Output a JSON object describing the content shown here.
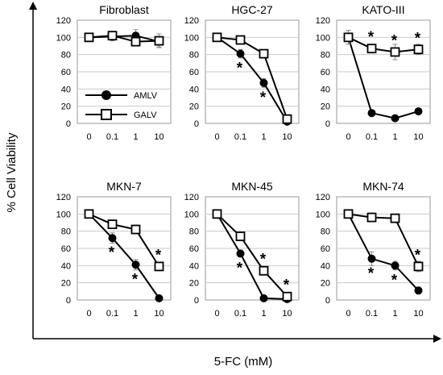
{
  "figure": {
    "ylabel": "% Cell Viability",
    "xlabel": "5-FC (mM)",
    "legend": {
      "placement": "inside-first-panel",
      "entries": [
        "AMLV",
        "GALV"
      ]
    }
  },
  "chart_data": [
    {
      "type": "line",
      "title": "Fibroblast",
      "categories": [
        "0",
        "0.1",
        "1",
        "10"
      ],
      "ylim": [
        0,
        120
      ],
      "yticks": [
        "0",
        "20",
        "40",
        "60",
        "80",
        "100",
        "120"
      ],
      "grid": true,
      "series": [
        {
          "name": "AMLV",
          "marker": "filled-circle",
          "values": [
            100,
            101,
            102,
            95
          ],
          "errors": [
            5,
            5,
            7,
            6
          ]
        },
        {
          "name": "GALV",
          "marker": "open-square",
          "values": [
            100,
            102,
            95,
            96
          ],
          "errors": [
            4,
            4,
            5,
            8
          ]
        }
      ],
      "significance": []
    },
    {
      "type": "line",
      "title": "HGC-27",
      "categories": [
        "0",
        "0.1",
        "1",
        "10"
      ],
      "ylim": [
        0,
        120
      ],
      "yticks": [
        "0",
        "20",
        "40",
        "60",
        "80",
        "100",
        "120"
      ],
      "grid": true,
      "series": [
        {
          "name": "AMLV",
          "marker": "filled-circle",
          "values": [
            100,
            81,
            47,
            2
          ],
          "errors": [
            4,
            5,
            5,
            3
          ]
        },
        {
          "name": "GALV",
          "marker": "open-square",
          "values": [
            100,
            97,
            81,
            5
          ],
          "errors": [
            4,
            3,
            4,
            3
          ]
        }
      ],
      "significance": [
        {
          "label": "*",
          "category": "0.1"
        },
        {
          "label": "*",
          "category": "1"
        }
      ]
    },
    {
      "type": "line",
      "title": "KATO-III",
      "categories": [
        "0",
        "0.1",
        "1",
        "10"
      ],
      "ylim": [
        0,
        120
      ],
      "yticks": [
        "0",
        "20",
        "40",
        "60",
        "80",
        "100",
        "120"
      ],
      "grid": true,
      "series": [
        {
          "name": "AMLV",
          "marker": "filled-circle",
          "values": [
            100,
            12,
            6,
            14
          ],
          "errors": [
            8,
            3,
            2,
            2
          ]
        },
        {
          "name": "GALV",
          "marker": "open-square",
          "values": [
            100,
            87,
            83,
            86
          ],
          "errors": [
            8,
            4,
            9,
            6
          ]
        }
      ],
      "significance": [
        {
          "label": "*",
          "category": "0.1"
        },
        {
          "label": "*",
          "category": "1"
        },
        {
          "label": "*",
          "category": "10"
        }
      ]
    },
    {
      "type": "line",
      "title": "MKN-7",
      "categories": [
        "0",
        "0.1",
        "1",
        "10"
      ],
      "ylim": [
        0,
        120
      ],
      "yticks": [
        "0",
        "20",
        "40",
        "60",
        "80",
        "100",
        "120"
      ],
      "grid": true,
      "series": [
        {
          "name": "AMLV",
          "marker": "filled-circle",
          "values": [
            100,
            72,
            41,
            2
          ],
          "errors": [
            3,
            6,
            6,
            2
          ]
        },
        {
          "name": "GALV",
          "marker": "open-square",
          "values": [
            100,
            88,
            82,
            39
          ],
          "errors": [
            3,
            5,
            5,
            5
          ]
        }
      ],
      "significance": [
        {
          "label": "*",
          "category": "0.1"
        },
        {
          "label": "*",
          "category": "1"
        },
        {
          "label": "*",
          "category": "10"
        }
      ]
    },
    {
      "type": "line",
      "title": "MKN-45",
      "categories": [
        "0",
        "0.1",
        "1",
        "10"
      ],
      "ylim": [
        0,
        120
      ],
      "yticks": [
        "0",
        "20",
        "40",
        "60",
        "80",
        "100",
        "120"
      ],
      "grid": true,
      "series": [
        {
          "name": "AMLV",
          "marker": "filled-circle",
          "values": [
            100,
            54,
            2,
            1
          ],
          "errors": [
            5,
            4,
            2,
            2
          ]
        },
        {
          "name": "GALV",
          "marker": "open-square",
          "values": [
            100,
            74,
            34,
            4
          ],
          "errors": [
            5,
            3,
            5,
            3
          ]
        }
      ],
      "significance": [
        {
          "label": "*",
          "category": "0.1"
        },
        {
          "label": "*",
          "category": "1"
        },
        {
          "label": "*",
          "category": "10"
        }
      ]
    },
    {
      "type": "line",
      "title": "MKN-74",
      "categories": [
        "0",
        "0.1",
        "1",
        "10"
      ],
      "ylim": [
        0,
        120
      ],
      "yticks": [
        "0",
        "20",
        "40",
        "60",
        "80",
        "100",
        "120"
      ],
      "grid": true,
      "series": [
        {
          "name": "AMLV",
          "marker": "filled-circle",
          "values": [
            100,
            48,
            40,
            11
          ],
          "errors": [
            3,
            8,
            5,
            4
          ]
        },
        {
          "name": "GALV",
          "marker": "open-square",
          "values": [
            100,
            96,
            95,
            39
          ],
          "errors": [
            3,
            5,
            3,
            6
          ]
        }
      ],
      "significance": [
        {
          "label": "*",
          "category": "0.1"
        },
        {
          "label": "*",
          "category": "1"
        },
        {
          "label": "*",
          "category": "10"
        }
      ]
    }
  ]
}
